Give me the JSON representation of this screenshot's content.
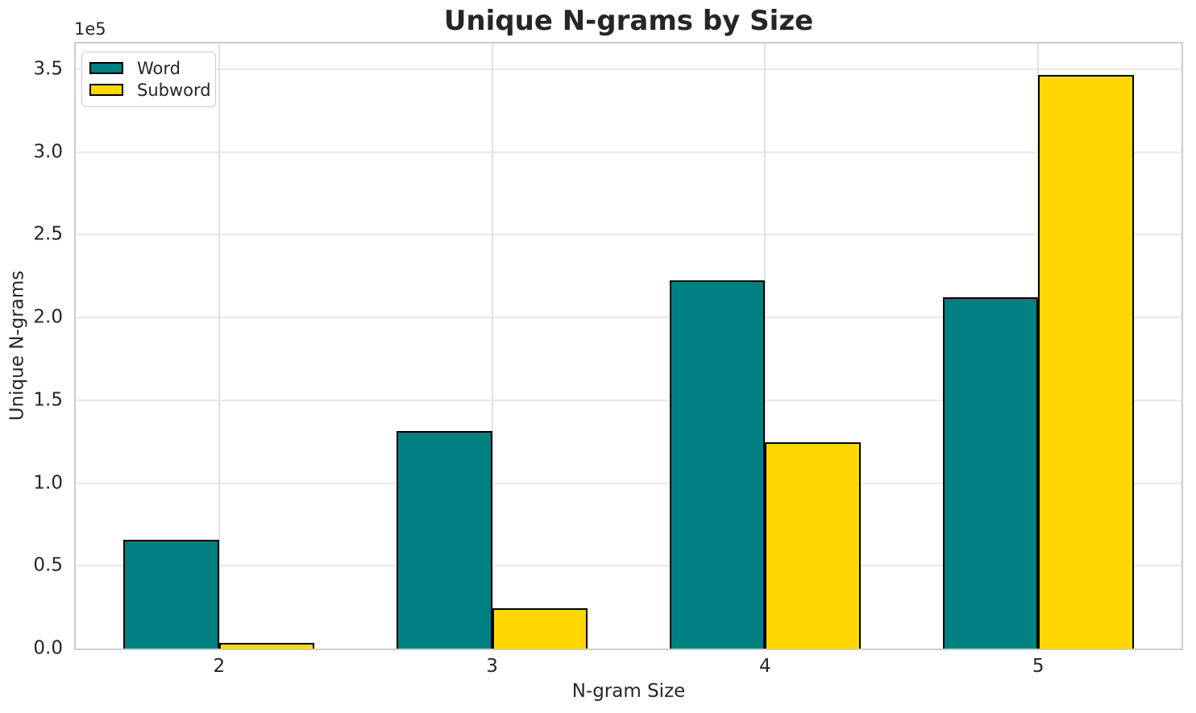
{
  "figure": {
    "title": "Unique N-grams by Size",
    "y_offset_label": "1e5"
  },
  "chart_data": {
    "type": "bar",
    "title": "Unique N-grams by Size",
    "xlabel": "N-gram Size",
    "ylabel": "Unique N-grams",
    "y_scale_offset_text": "1e5",
    "categories": [
      2,
      3,
      4,
      5
    ],
    "xtick_labels": [
      "2",
      "3",
      "4",
      "5"
    ],
    "ytick_labels": [
      "0.0",
      "0.5",
      "1.0",
      "1.5",
      "2.0",
      "2.5",
      "3.0",
      "3.5"
    ],
    "ytick_values": [
      0,
      50000,
      100000,
      150000,
      200000,
      250000,
      300000,
      350000
    ],
    "series": [
      {
        "name": "Word",
        "color": "#008080",
        "values": [
          65500,
          131500,
          222500,
          212000
        ]
      },
      {
        "name": "Subword",
        "color": "#FFD700",
        "values": [
          3500,
          24500,
          124500,
          346500
        ]
      }
    ],
    "bar_width": 0.35,
    "bar_edge_color": "#000000",
    "xlim": [
      1.475,
      5.525
    ],
    "ylim": [
      0,
      365500
    ],
    "grid": true,
    "legend_position": "upper left"
  },
  "legend": {
    "entries": [
      {
        "label": "Word",
        "swatch_color": "#008080"
      },
      {
        "label": "Subword",
        "swatch_color": "#FFD700"
      }
    ]
  },
  "colors": {
    "background": "#ffffff",
    "grid_line": "#e8e8e8",
    "spine": "#cccccc",
    "text": "#262626",
    "word_bar": "#008080",
    "subword_bar": "#FFD700",
    "bar_edge": "#000000"
  }
}
